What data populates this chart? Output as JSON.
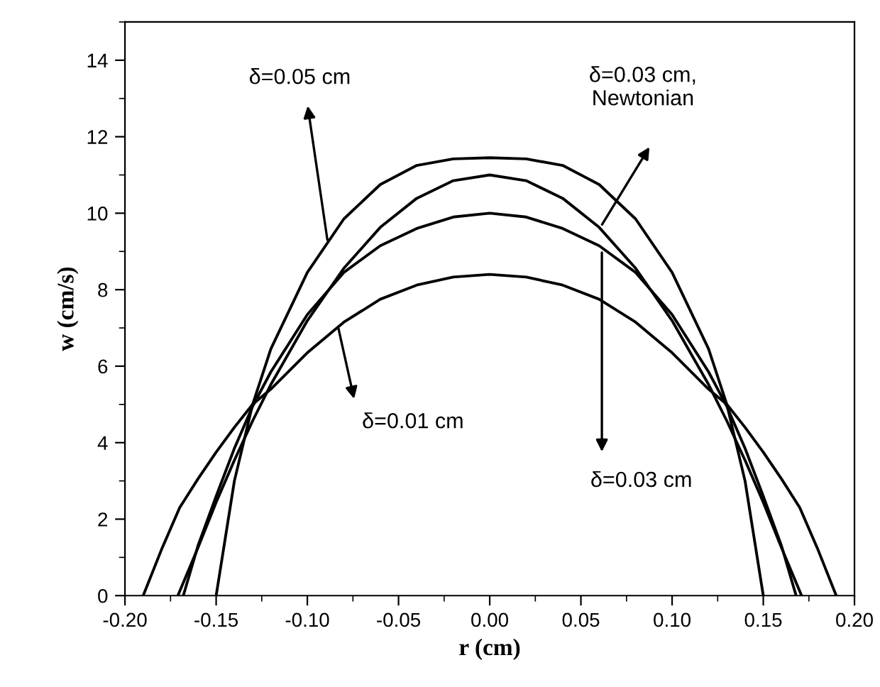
{
  "chart_data": {
    "type": "line",
    "xlabel": "r (cm)",
    "ylabel": "w (cm/s)",
    "xlim": [
      -0.2,
      0.2
    ],
    "ylim": [
      0,
      15
    ],
    "xticks": [
      {
        "value": -0.2,
        "label": "-0.20"
      },
      {
        "value": -0.15,
        "label": "-0.15"
      },
      {
        "value": -0.1,
        "label": "-0.10"
      },
      {
        "value": -0.05,
        "label": "-0.05"
      },
      {
        "value": 0,
        "label": "0.00"
      },
      {
        "value": 0.05,
        "label": "0.05"
      },
      {
        "value": 0.1,
        "label": "0.10"
      },
      {
        "value": 0.15,
        "label": "0.15"
      },
      {
        "value": 0.2,
        "label": "0.20"
      }
    ],
    "yticks": [
      0,
      2,
      4,
      6,
      8,
      10,
      12,
      14
    ],
    "grid": false,
    "legend": false,
    "marker": "none",
    "line_style": "solid",
    "series": [
      {
        "color": "#000000",
        "x": [
          -0.15,
          -0.14,
          -0.13,
          -0.12,
          -0.1,
          -0.08,
          -0.06,
          -0.04,
          -0.02,
          0,
          0.02,
          0.04,
          0.06,
          0.08,
          0.1,
          0.12,
          0.13,
          0.14,
          0.15
        ],
        "values": [
          0,
          3.0,
          5.0,
          6.45,
          8.45,
          9.85,
          10.75,
          11.25,
          11.42,
          11.45,
          11.42,
          11.25,
          10.75,
          9.85,
          8.45,
          6.45,
          5.0,
          3.0,
          0
        ]
      },
      {
        "color": "#000000",
        "x": [
          -0.171,
          -0.16,
          -0.15,
          -0.14,
          -0.13,
          -0.12,
          -0.1,
          -0.08,
          -0.06,
          -0.04,
          -0.02,
          0,
          0.02,
          0.04,
          0.06,
          0.08,
          0.1,
          0.12,
          0.13,
          0.14,
          0.15,
          0.16,
          0.171
        ],
        "values": [
          0,
          1.25,
          2.44,
          3.54,
          4.57,
          5.52,
          7.19,
          8.56,
          9.63,
          10.39,
          10.85,
          11.0,
          10.85,
          10.39,
          9.63,
          8.56,
          7.19,
          5.52,
          4.57,
          3.54,
          2.44,
          1.25,
          0
        ]
      },
      {
        "color": "#000000",
        "x": [
          -0.168,
          -0.16,
          -0.15,
          -0.14,
          -0.13,
          -0.12,
          -0.1,
          -0.08,
          -0.06,
          -0.04,
          -0.02,
          0,
          0.02,
          0.04,
          0.06,
          0.08,
          0.1,
          0.12,
          0.13,
          0.14,
          0.15,
          0.16,
          0.168
        ],
        "values": [
          0,
          1.3,
          2.6,
          3.85,
          4.95,
          5.85,
          7.35,
          8.45,
          9.15,
          9.6,
          9.9,
          10.0,
          9.9,
          9.6,
          9.15,
          8.45,
          7.35,
          5.85,
          4.95,
          3.85,
          2.6,
          1.3,
          0
        ]
      },
      {
        "color": "#000000",
        "x": [
          -0.19,
          -0.18,
          -0.17,
          -0.16,
          -0.15,
          -0.14,
          -0.13,
          -0.12,
          -0.1,
          -0.08,
          -0.06,
          -0.04,
          -0.02,
          0,
          0.02,
          0.04,
          0.06,
          0.08,
          0.1,
          0.12,
          0.13,
          0.14,
          0.15,
          0.16,
          0.17,
          0.18,
          0.19
        ],
        "values": [
          0,
          1.2,
          2.3,
          3.05,
          3.75,
          4.4,
          5.0,
          5.4,
          6.35,
          7.15,
          7.75,
          8.12,
          8.33,
          8.4,
          8.33,
          8.12,
          7.75,
          7.15,
          6.35,
          5.4,
          5.0,
          4.4,
          3.75,
          3.05,
          2.3,
          1.2,
          0
        ]
      }
    ],
    "annotations": [
      {
        "text": "δ=0.05 cm",
        "x": -0.089,
        "y": 9.3
      },
      {
        "text": "δ=0.01 cm",
        "x": -0.083,
        "y": 7.0
      },
      "δ=0.03 cm,\nNewtonian",
      {
        "text": "δ=0.03 cm",
        "x": 0.0615,
        "y": 8.97
      }
    ]
  }
}
